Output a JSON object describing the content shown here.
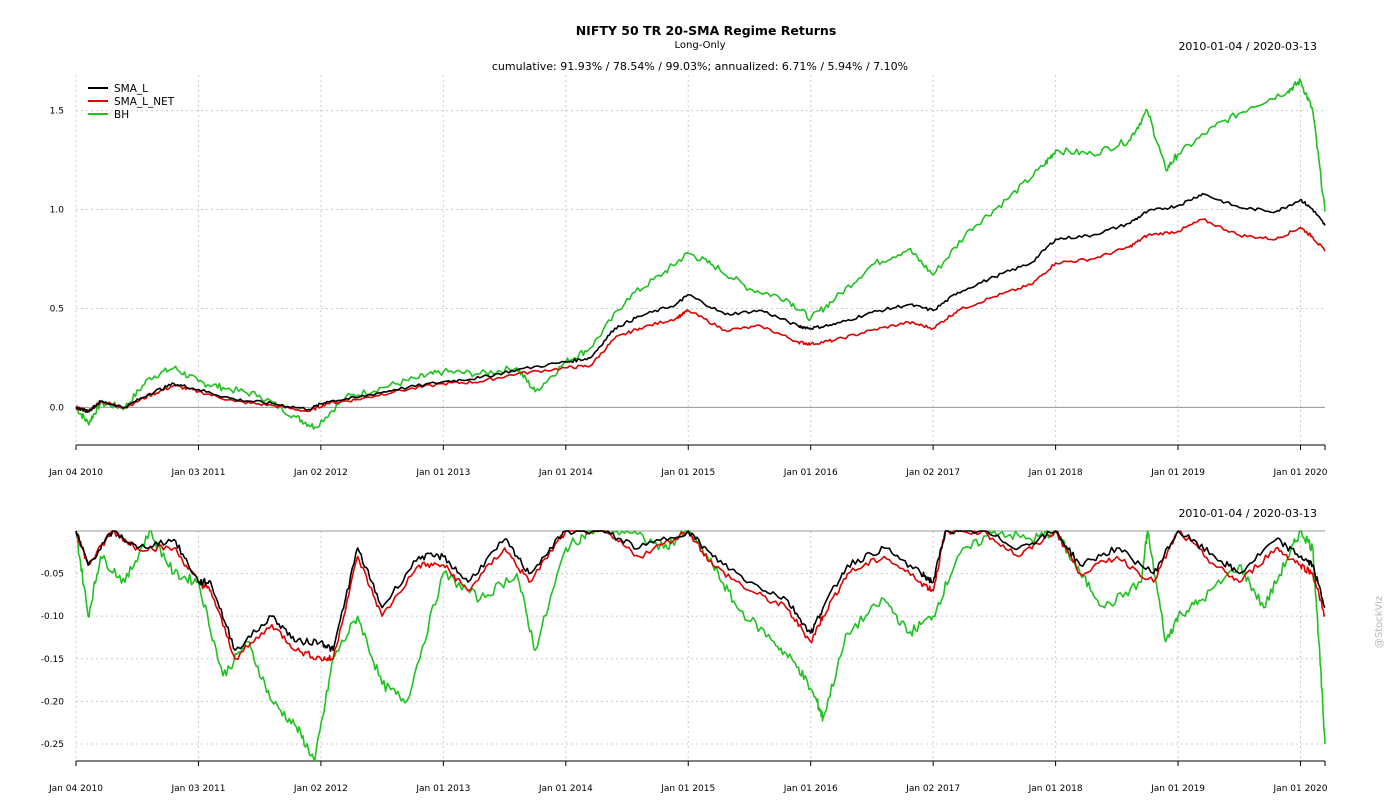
{
  "chart_data": {
    "type": "line",
    "title": "NIFTY 50 TR 20-SMA Regime Returns",
    "subtitle": "Long-Only",
    "date_range": "2010-01-04 / 2020-03-13",
    "summary": "cumulative: 91.93% / 78.54% / 99.03%; annualized: 6.71% / 5.94% / 7.10%",
    "watermark": "@StockViz",
    "x_tick_labels": [
      "Jan 04 2010",
      "Jan 03 2011",
      "Jan 02 2012",
      "Jan 01 2013",
      "Jan 01 2014",
      "Jan 01 2015",
      "Jan 01 2016",
      "Jan 02 2017",
      "Jan 01 2018",
      "Jan 01 2019",
      "Jan 01 2020"
    ],
    "x_tick_years": [
      2010.0,
      2011.0,
      2012.0,
      2013.0,
      2014.0,
      2015.0,
      2016.0,
      2017.0,
      2018.0,
      2019.0,
      2020.0
    ],
    "x_range": [
      2010.0,
      2020.2
    ],
    "legend": {
      "placement": "top-left",
      "entries": [
        "SMA_L",
        "SMA_L_NET",
        "BH"
      ]
    },
    "colors": {
      "SMA_L": "#000000",
      "SMA_L_NET": "#e00000",
      "BH": "#1ec21e"
    },
    "panels": [
      {
        "name": "cumulative-returns",
        "ylim": [
          -0.19,
          1.68
        ],
        "y_ticks": [
          0.0,
          0.5,
          1.0,
          1.5
        ],
        "y_tick_labels": [
          "0.0",
          "0.5",
          "1.0",
          "1.5"
        ],
        "series": [
          {
            "name": "SMA_L",
            "x": [
              2010.0,
              2010.1,
              2010.2,
              2010.4,
              2010.6,
              2010.8,
              2011.0,
              2011.3,
              2011.6,
              2011.9,
              2012.05,
              2012.3,
              2012.6,
              2013.0,
              2013.3,
              2013.6,
              2014.0,
              2014.2,
              2014.4,
              2014.6,
              2014.9,
              2015.0,
              2015.3,
              2015.6,
              2015.9,
              2016.0,
              2016.2,
              2016.5,
              2016.8,
              2017.0,
              2017.2,
              2017.5,
              2017.8,
              2018.0,
              2018.3,
              2018.6,
              2018.75,
              2019.0,
              2019.2,
              2019.5,
              2019.8,
              2020.0,
              2020.1,
              2020.2
            ],
            "y": [
              0.0,
              -0.02,
              0.03,
              0.0,
              0.07,
              0.12,
              0.09,
              0.04,
              0.02,
              -0.01,
              0.03,
              0.05,
              0.09,
              0.13,
              0.15,
              0.19,
              0.23,
              0.25,
              0.4,
              0.46,
              0.52,
              0.57,
              0.47,
              0.49,
              0.41,
              0.4,
              0.42,
              0.48,
              0.52,
              0.49,
              0.58,
              0.66,
              0.73,
              0.85,
              0.87,
              0.93,
              0.99,
              1.02,
              1.08,
              1.01,
              0.99,
              1.05,
              1.0,
              0.92
            ]
          },
          {
            "name": "SMA_L_NET",
            "x": [
              2010.0,
              2010.1,
              2010.2,
              2010.4,
              2010.6,
              2010.8,
              2011.0,
              2011.3,
              2011.6,
              2011.9,
              2012.05,
              2012.3,
              2012.6,
              2013.0,
              2013.3,
              2013.6,
              2014.0,
              2014.2,
              2014.4,
              2014.6,
              2014.9,
              2015.0,
              2015.3,
              2015.6,
              2015.9,
              2016.0,
              2016.2,
              2016.5,
              2016.8,
              2017.0,
              2017.2,
              2017.5,
              2017.8,
              2018.0,
              2018.3,
              2018.6,
              2018.75,
              2019.0,
              2019.2,
              2019.5,
              2019.8,
              2020.0,
              2020.1,
              2020.2
            ],
            "y": [
              0.0,
              -0.02,
              0.03,
              0.0,
              0.06,
              0.11,
              0.08,
              0.03,
              0.01,
              -0.02,
              0.02,
              0.04,
              0.08,
              0.12,
              0.13,
              0.17,
              0.2,
              0.21,
              0.35,
              0.4,
              0.45,
              0.49,
              0.39,
              0.41,
              0.33,
              0.32,
              0.34,
              0.39,
              0.43,
              0.4,
              0.49,
              0.56,
              0.62,
              0.73,
              0.75,
              0.81,
              0.87,
              0.89,
              0.95,
              0.87,
              0.85,
              0.91,
              0.86,
              0.79
            ]
          },
          {
            "name": "BH",
            "x": [
              2010.0,
              2010.1,
              2010.2,
              2010.4,
              2010.6,
              2010.8,
              2011.0,
              2011.2,
              2011.5,
              2011.8,
              2011.95,
              2012.2,
              2012.5,
              2012.8,
              2013.0,
              2013.3,
              2013.6,
              2013.75,
              2014.0,
              2014.2,
              2014.5,
              2014.8,
              2015.0,
              2015.2,
              2015.5,
              2015.8,
              2016.0,
              2016.2,
              2016.5,
              2016.8,
              2017.0,
              2017.3,
              2017.6,
              2017.9,
              2018.0,
              2018.3,
              2018.6,
              2018.75,
              2018.9,
              2019.0,
              2019.3,
              2019.6,
              2019.9,
              2020.0,
              2020.1,
              2020.2
            ],
            "y": [
              0.0,
              -0.08,
              0.02,
              0.0,
              0.15,
              0.2,
              0.13,
              0.1,
              0.06,
              -0.05,
              -0.1,
              0.05,
              0.1,
              0.15,
              0.18,
              0.17,
              0.2,
              0.08,
              0.23,
              0.3,
              0.55,
              0.68,
              0.78,
              0.72,
              0.6,
              0.55,
              0.45,
              0.55,
              0.72,
              0.8,
              0.67,
              0.9,
              1.05,
              1.22,
              1.3,
              1.28,
              1.35,
              1.5,
              1.2,
              1.28,
              1.42,
              1.52,
              1.6,
              1.65,
              1.5,
              0.99
            ]
          }
        ]
      },
      {
        "name": "drawdowns",
        "ylim": [
          -0.27,
          0.0
        ],
        "y_ticks": [
          -0.05,
          -0.1,
          -0.15,
          -0.2,
          -0.25
        ],
        "y_tick_labels": [
          "-0.05",
          "-0.10",
          "-0.15",
          "-0.20",
          "-0.25"
        ],
        "series": [
          {
            "name": "SMA_L",
            "x": [
              2010.0,
              2010.1,
              2010.3,
              2010.5,
              2010.8,
              2011.0,
              2011.1,
              2011.3,
              2011.6,
              2011.8,
              2012.0,
              2012.1,
              2012.3,
              2012.5,
              2012.8,
              2013.0,
              2013.2,
              2013.5,
              2013.7,
              2014.0,
              2014.3,
              2014.6,
              2015.0,
              2015.2,
              2015.5,
              2015.8,
              2016.0,
              2016.1,
              2016.3,
              2016.6,
              2016.9,
              2017.0,
              2017.1,
              2017.4,
              2017.7,
              2018.0,
              2018.2,
              2018.5,
              2018.8,
              2019.0,
              2019.3,
              2019.5,
              2019.8,
              2020.0,
              2020.1,
              2020.2
            ],
            "y": [
              0.0,
              -0.04,
              0.0,
              -0.02,
              -0.01,
              -0.06,
              -0.06,
              -0.14,
              -0.1,
              -0.13,
              -0.13,
              -0.14,
              -0.02,
              -0.09,
              -0.03,
              -0.03,
              -0.06,
              -0.01,
              -0.05,
              0.0,
              0.0,
              -0.02,
              0.0,
              -0.03,
              -0.06,
              -0.08,
              -0.12,
              -0.09,
              -0.04,
              -0.02,
              -0.05,
              -0.06,
              0.0,
              0.0,
              -0.02,
              0.0,
              -0.04,
              -0.02,
              -0.05,
              0.0,
              -0.03,
              -0.05,
              -0.01,
              -0.03,
              -0.04,
              -0.09
            ]
          },
          {
            "name": "SMA_L_NET",
            "x": [
              2010.0,
              2010.1,
              2010.3,
              2010.5,
              2010.8,
              2011.0,
              2011.1,
              2011.3,
              2011.6,
              2011.8,
              2012.0,
              2012.1,
              2012.3,
              2012.5,
              2012.8,
              2013.0,
              2013.2,
              2013.5,
              2013.7,
              2014.0,
              2014.3,
              2014.6,
              2015.0,
              2015.2,
              2015.5,
              2015.8,
              2016.0,
              2016.1,
              2016.3,
              2016.6,
              2016.9,
              2017.0,
              2017.1,
              2017.4,
              2017.7,
              2018.0,
              2018.2,
              2018.5,
              2018.8,
              2019.0,
              2019.3,
              2019.5,
              2019.8,
              2020.0,
              2020.1,
              2020.2
            ],
            "y": [
              0.0,
              -0.04,
              0.0,
              -0.02,
              -0.02,
              -0.06,
              -0.07,
              -0.15,
              -0.11,
              -0.14,
              -0.15,
              -0.15,
              -0.03,
              -0.1,
              -0.04,
              -0.04,
              -0.07,
              -0.02,
              -0.06,
              0.0,
              0.0,
              -0.03,
              0.0,
              -0.04,
              -0.07,
              -0.09,
              -0.13,
              -0.1,
              -0.05,
              -0.03,
              -0.06,
              -0.07,
              0.0,
              0.0,
              -0.03,
              0.0,
              -0.05,
              -0.03,
              -0.06,
              0.0,
              -0.04,
              -0.06,
              -0.02,
              -0.04,
              -0.05,
              -0.1
            ]
          },
          {
            "name": "BH",
            "x": [
              2010.0,
              2010.1,
              2010.2,
              2010.4,
              2010.6,
              2010.8,
              2011.0,
              2011.2,
              2011.4,
              2011.6,
              2011.8,
              2011.95,
              2012.1,
              2012.3,
              2012.5,
              2012.7,
              2013.0,
              2013.3,
              2013.6,
              2013.75,
              2014.0,
              2014.2,
              2014.5,
              2014.8,
              2015.0,
              2015.2,
              2015.4,
              2015.7,
              2015.9,
              2016.05,
              2016.1,
              2016.3,
              2016.6,
              2016.8,
              2017.0,
              2017.2,
              2017.5,
              2017.8,
              2018.0,
              2018.2,
              2018.4,
              2018.7,
              2018.75,
              2018.9,
              2019.0,
              2019.2,
              2019.5,
              2019.7,
              2019.9,
              2020.0,
              2020.1,
              2020.15,
              2020.2
            ],
            "y": [
              0.0,
              -0.1,
              -0.03,
              -0.06,
              0.0,
              -0.05,
              -0.06,
              -0.17,
              -0.13,
              -0.2,
              -0.23,
              -0.27,
              -0.15,
              -0.1,
              -0.18,
              -0.2,
              -0.05,
              -0.08,
              -0.05,
              -0.14,
              -0.02,
              0.0,
              0.0,
              -0.02,
              0.0,
              -0.04,
              -0.09,
              -0.13,
              -0.16,
              -0.2,
              -0.22,
              -0.12,
              -0.08,
              -0.12,
              -0.1,
              -0.03,
              0.0,
              -0.01,
              0.0,
              -0.05,
              -0.09,
              -0.06,
              0.0,
              -0.13,
              -0.1,
              -0.08,
              -0.04,
              -0.09,
              -0.03,
              0.0,
              -0.02,
              -0.13,
              -0.25
            ]
          }
        ]
      }
    ]
  }
}
